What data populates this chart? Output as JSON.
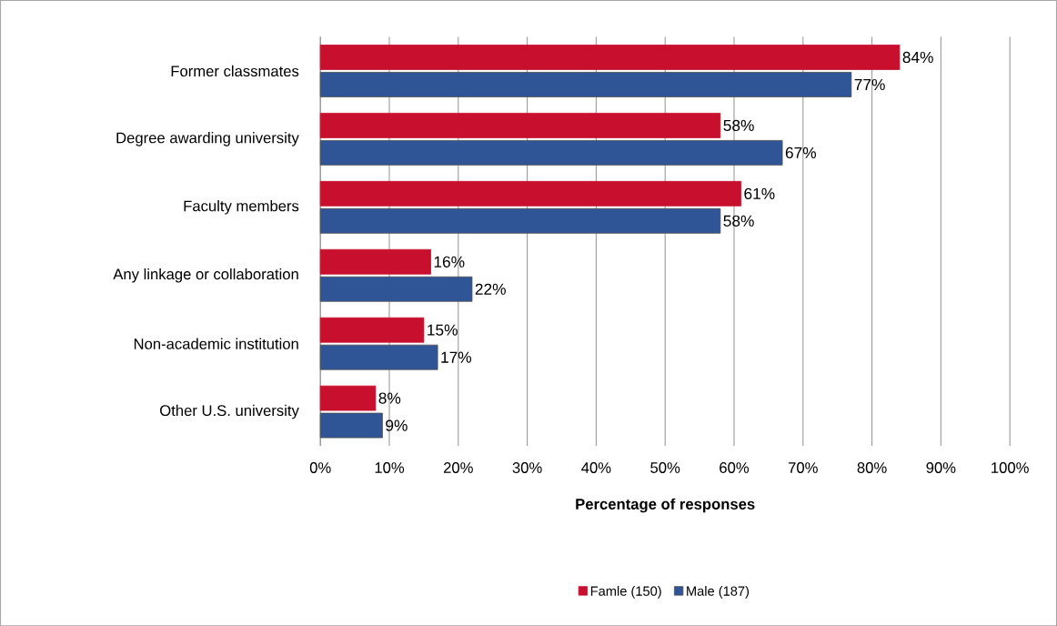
{
  "chart_data": {
    "type": "bar",
    "orientation": "horizontal",
    "xlabel": "Percentage of responses",
    "categories": [
      "Former classmates",
      "Degree awarding university",
      "Faculty members",
      "Any linkage or collaboration",
      "Non-academic institution",
      "Other U.S. university"
    ],
    "series": [
      {
        "name": "Famle (150)",
        "color": "#c8102e",
        "values": [
          84,
          58,
          61,
          16,
          15,
          8
        ],
        "value_labels": [
          "84%",
          "58%",
          "61%",
          "16%",
          "15%",
          "8%"
        ]
      },
      {
        "name": "Male (187)",
        "color": "#2f5597",
        "values": [
          77,
          67,
          58,
          22,
          17,
          9
        ],
        "value_labels": [
          "77%",
          "67%",
          "58%",
          "22%",
          "17%",
          "9%"
        ]
      }
    ],
    "xlim": [
      0,
      100
    ],
    "xticks": [
      {
        "value": 0,
        "label": "0%"
      },
      {
        "value": 10,
        "label": "10%"
      },
      {
        "value": 20,
        "label": "20%"
      },
      {
        "value": 30,
        "label": "30%"
      },
      {
        "value": 40,
        "label": "40%"
      },
      {
        "value": 50,
        "label": "50%"
      },
      {
        "value": 60,
        "label": "60%"
      },
      {
        "value": 70,
        "label": "70%"
      },
      {
        "value": 80,
        "label": "80%"
      },
      {
        "value": 90,
        "label": "90%"
      },
      {
        "value": 100,
        "label": "100%"
      }
    ],
    "grid": "x",
    "legend": "bottom"
  }
}
